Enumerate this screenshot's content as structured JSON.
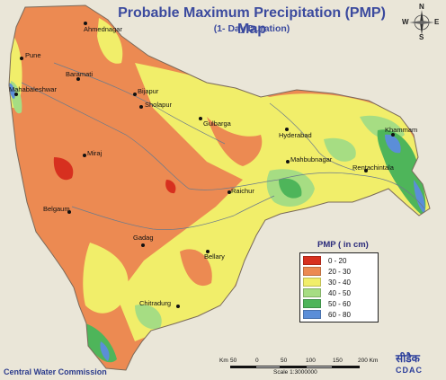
{
  "title": "Probable Maximum Precipitation (PMP) Map",
  "subtitle": "(1- Day Duration)",
  "legend": {
    "title": "PMP ( in cm)",
    "items": [
      {
        "label": "0 - 20",
        "color": "#d7301f"
      },
      {
        "label": "20 - 30",
        "color": "#ec8a52"
      },
      {
        "label": "30 - 40",
        "color": "#f1ee6a"
      },
      {
        "label": "40 - 50",
        "color": "#a6dd83"
      },
      {
        "label": "50 - 60",
        "color": "#4eb55a"
      },
      {
        "label": "60 - 80",
        "color": "#5b8ed8"
      }
    ]
  },
  "compass": {
    "n": "N",
    "e": "E",
    "s": "S",
    "w": "W"
  },
  "cities": [
    {
      "name": "Ahmednagar"
    },
    {
      "name": "Pune"
    },
    {
      "name": "Baramati"
    },
    {
      "name": "Mahabaleshwar"
    },
    {
      "name": "Bijapur"
    },
    {
      "name": "Sholapur"
    },
    {
      "name": "Gulbarga"
    },
    {
      "name": "Hyderabad"
    },
    {
      "name": "Khammam"
    },
    {
      "name": "Mahbubnagar"
    },
    {
      "name": "Rentachintala"
    },
    {
      "name": "Miraj"
    },
    {
      "name": "Raichur"
    },
    {
      "name": "Belgaum"
    },
    {
      "name": "Gadag"
    },
    {
      "name": "Bellary"
    },
    {
      "name": "Chitradurg"
    }
  ],
  "scalebar": {
    "unit_label": "Km",
    "ticks": [
      "50",
      "0",
      "50",
      "100",
      "150",
      "200 Km"
    ],
    "scale_text": "Scale 1:3000000"
  },
  "agency": "Central Water Commission",
  "logo": {
    "hindi": "सीडैक",
    "text": "CDAC"
  }
}
